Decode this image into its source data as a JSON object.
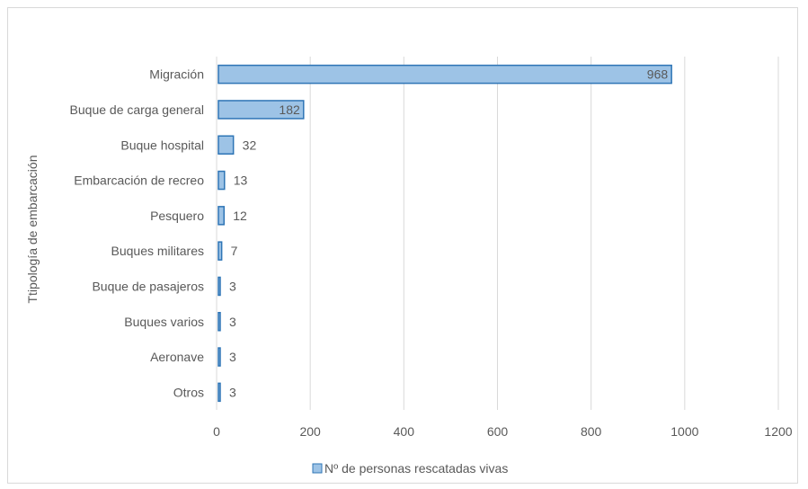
{
  "chart_data": {
    "type": "bar",
    "orientation": "horizontal",
    "categories": [
      "Migración",
      "Buque de carga general",
      "Buque hospital",
      "Embarcación de recreo",
      "Pesquero",
      "Buques militares",
      "Buque de pasajeros",
      "Buques varios",
      "Aeronave",
      "Otros"
    ],
    "series": [
      {
        "name": "Nº de personas rescatadas vivas",
        "values": [
          968,
          182,
          32,
          13,
          12,
          7,
          3,
          3,
          3,
          3
        ],
        "color": "#9dc3e6",
        "stroke": "#2e75b6"
      }
    ],
    "xlabel": "",
    "ylabel": "Ttipología de embarcación",
    "xlim": [
      0,
      1200
    ],
    "xticks": [
      0,
      200,
      400,
      600,
      800,
      1000,
      1200
    ],
    "grid": true,
    "legend_position": "bottom"
  }
}
